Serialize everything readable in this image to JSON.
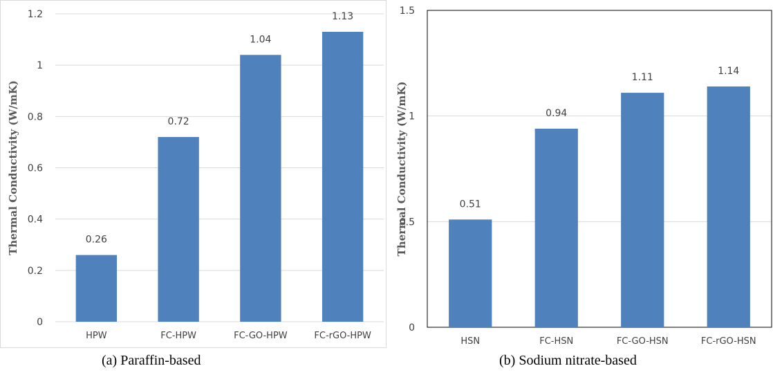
{
  "chart_data": [
    {
      "type": "bar",
      "title": "",
      "caption": "(a) Paraffin-based",
      "ylabel": "Thermal Conductivity (W/mK)",
      "xlabel": "",
      "categories": [
        "HPW",
        "FC-HPW",
        "FC-GO-HPW",
        "FC-rGO-HPW"
      ],
      "values": [
        0.26,
        0.72,
        1.04,
        1.13
      ],
      "value_labels": [
        "0.26",
        "0.72",
        "1.04",
        "1.13"
      ],
      "ylim": [
        0,
        1.2
      ],
      "yticks": [
        "0",
        "0.2",
        "0.4",
        "0.6",
        "0.8",
        "1",
        "1.2"
      ],
      "grid": true,
      "bar_color": "#4F81BD"
    },
    {
      "type": "bar",
      "title": "",
      "caption": "(b) Sodium nitrate-based",
      "ylabel": "Thermal Conductivity (W/mK)",
      "xlabel": "",
      "categories": [
        "HSN",
        "FC-HSN",
        "FC-GO-HSN",
        "FC-rGO-HSN"
      ],
      "values": [
        0.51,
        0.94,
        1.11,
        1.14
      ],
      "value_labels": [
        "0.51",
        "0.94",
        "1.11",
        "1.14"
      ],
      "ylim": [
        0,
        1.5
      ],
      "yticks": [
        "0",
        "0.5",
        "1",
        "1.5"
      ],
      "grid": true,
      "bar_color": "#4F81BD"
    }
  ]
}
